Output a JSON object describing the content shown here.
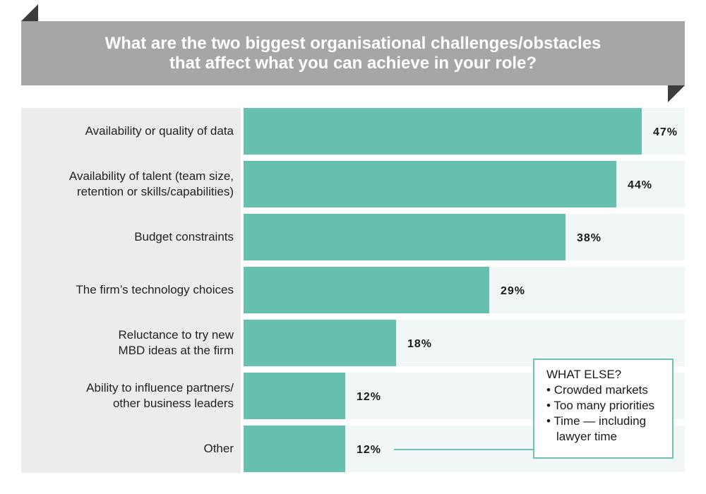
{
  "title_line1": "What are the two biggest organisational challenges/obstacles",
  "title_line2": "that affect what you can achieve in your role?",
  "colors": {
    "bar": "#67bfb0",
    "track": "#f1f7f7",
    "label_panel": "#ececec",
    "banner": "#a6a6a6",
    "fold": "#3c3c3c",
    "callout_border": "#6fc2b3"
  },
  "chart_data": {
    "type": "bar",
    "orientation": "horizontal",
    "title": "What are the two biggest organisational challenges/obstacles that affect what you can achieve in your role?",
    "categories": [
      [
        "Availability or quality of data"
      ],
      [
        "Availability of talent (team size,",
        "retention or skills/capabilities)"
      ],
      [
        "Budget constraints"
      ],
      [
        "The firm’s technology choices"
      ],
      [
        "Reluctance to try new",
        "MBD ideas at the firm"
      ],
      [
        "Ability to influence partners/",
        "other business leaders"
      ],
      [
        "Other"
      ]
    ],
    "values": [
      47,
      44,
      38,
      29,
      18,
      12,
      12
    ],
    "value_labels": [
      "47%",
      "44%",
      "38%",
      "29%",
      "18%",
      "12%",
      "12%"
    ],
    "unit": "%",
    "xlim": [
      0,
      52
    ]
  },
  "callout": {
    "title": "WHAT ELSE?",
    "items": [
      "Crowded markets",
      "Too many priorities",
      "Time — including lawyer time"
    ]
  }
}
